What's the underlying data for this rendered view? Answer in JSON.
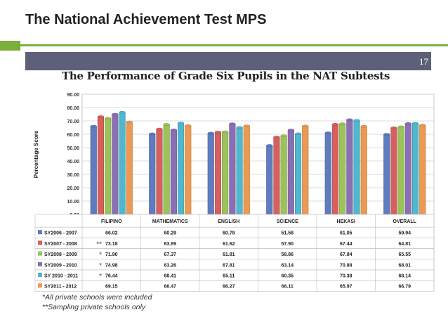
{
  "slide": {
    "title": "The National Achievement Test MPS",
    "page_number": "17"
  },
  "footnotes": [
    "*All private schools were included",
    "**Sampling private schools only"
  ],
  "colors": {
    "accent_green": "#7cae3c",
    "header_bar": "#5d6079"
  },
  "chart_data": {
    "type": "bar",
    "title": "The Performance of Grade Six Pupils in the NAT Subtests",
    "ylabel": "Percentage Score",
    "xlabel": "",
    "ylim": [
      0,
      90
    ],
    "yticks": [
      "0.00",
      "10.00",
      "20.00",
      "30.00",
      "40.00",
      "50.00",
      "60.00",
      "70.00",
      "80.00",
      "90.00"
    ],
    "grid": true,
    "legend_position": "bottom-table",
    "categories": [
      "FILIPINO",
      "MATHEMATICS",
      "ENGLISH",
      "SCIENCE",
      "HEKASI",
      "OVERALL"
    ],
    "series": [
      {
        "name": "SY2006 - 2007",
        "marker": "",
        "color": "#5f7cc0",
        "values": [
          66.02,
          60.29,
          60.78,
          51.58,
          61.05,
          59.94
        ],
        "labels": [
          "66.02",
          "60.29",
          "60.78",
          "51.58",
          "61.05",
          "59.94"
        ]
      },
      {
        "name": "SY2007 - 2008",
        "marker": "**",
        "color": "#d6605e",
        "values": [
          73.18,
          63.89,
          61.62,
          57.9,
          67.44,
          64.81
        ],
        "labels": [
          "73.18",
          "63.89",
          "61.62",
          "57.90",
          "67.44",
          "64.81"
        ]
      },
      {
        "name": "SY2008 - 2009",
        "marker": "*",
        "color": "#9bc35a",
        "values": [
          71.9,
          67.37,
          61.81,
          58.86,
          67.84,
          65.55
        ],
        "labels": [
          "71.90",
          "67.37",
          "61.81",
          "58.86",
          "67.84",
          "65.55"
        ]
      },
      {
        "name": "SY2009 - 2010",
        "marker": "*",
        "color": "#8a6fb3",
        "values": [
          74.98,
          63.26,
          67.81,
          63.14,
          70.88,
          68.01
        ],
        "labels": [
          "74.98",
          "63.26",
          "67.81",
          "63.14",
          "70.88",
          "68.01"
        ]
      },
      {
        "name": "SY 2010 - 2011",
        "marker": "*",
        "color": "#4fb8cf",
        "values": [
          76.44,
          68.41,
          65.11,
          60.35,
          70.38,
          68.14
        ],
        "labels": [
          "76.44",
          "68.41",
          "65.11",
          "60.35",
          "70.38",
          "68.14"
        ]
      },
      {
        "name": "SY2011 - 2012",
        "marker": "",
        "color": "#ec9a52",
        "values": [
          69.15,
          66.47,
          66.27,
          66.11,
          65.97,
          66.79
        ],
        "labels": [
          "69.15",
          "66.47",
          "66.27",
          "66.11",
          "65.97",
          "66.79"
        ]
      }
    ]
  }
}
